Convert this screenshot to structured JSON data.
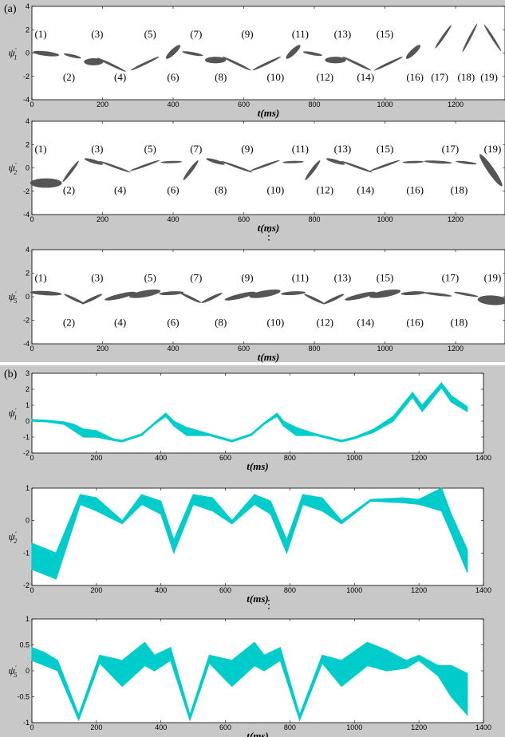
{
  "panels": [
    {
      "label": "(a)"
    },
    {
      "label": "(b)"
    }
  ],
  "ellipsis": "⋮",
  "chart_data": [
    {
      "type": "scatter",
      "panel": "a",
      "ylabel": "ψ'1",
      "xlabel": "t(ms)",
      "xlim": [
        0,
        1340
      ],
      "ylim": [
        -4,
        4
      ],
      "xticks": [
        0,
        200,
        400,
        600,
        800,
        1000,
        1200
      ],
      "yticks": [
        -4,
        -2,
        0,
        2,
        4
      ],
      "segment_labels": [
        {
          "text": "(1)",
          "x": 25,
          "y": 1.6
        },
        {
          "text": "(2)",
          "x": 105,
          "y": -2.1
        },
        {
          "text": "(3)",
          "x": 185,
          "y": 1.6
        },
        {
          "text": "(4)",
          "x": 250,
          "y": -2.1
        },
        {
          "text": "(5)",
          "x": 335,
          "y": 1.6
        },
        {
          "text": "(6)",
          "x": 400,
          "y": -2.1
        },
        {
          "text": "(7)",
          "x": 465,
          "y": 1.6
        },
        {
          "text": "(8)",
          "x": 535,
          "y": -2.1
        },
        {
          "text": "(9)",
          "x": 610,
          "y": 1.6
        },
        {
          "text": "(10)",
          "x": 690,
          "y": -2.1
        },
        {
          "text": "(11)",
          "x": 760,
          "y": 1.6
        },
        {
          "text": "(12)",
          "x": 830,
          "y": -2.1
        },
        {
          "text": "(13)",
          "x": 880,
          "y": 1.6
        },
        {
          "text": "(14)",
          "x": 945,
          "y": -2.1
        },
        {
          "text": "(15)",
          "x": 1000,
          "y": 1.6
        },
        {
          "text": "(16)",
          "x": 1085,
          "y": -2.1
        },
        {
          "text": "(17)",
          "x": 1155,
          "y": -2.1
        },
        {
          "text": "(18)",
          "x": 1230,
          "y": -2.1
        },
        {
          "text": "(19)",
          "x": 1295,
          "y": -2.1
        }
      ],
      "ellipses": [
        {
          "x": 40,
          "y": -0.05,
          "w": 75,
          "h": 0.28,
          "angle": -0.2
        },
        {
          "x": 115,
          "y": -0.25,
          "w": 50,
          "h": 0.14,
          "angle": -0.4
        },
        {
          "x": 175,
          "y": -0.75,
          "w": 55,
          "h": 0.5,
          "angle": 0
        },
        {
          "x": 225,
          "y": -1.0,
          "w": 90,
          "h": 0.1,
          "angle": -0.8
        },
        {
          "x": 320,
          "y": -0.9,
          "w": 90,
          "h": 0.1,
          "angle": 0.8
        },
        {
          "x": 400,
          "y": 0.1,
          "w": 55,
          "h": 0.35,
          "angle": 1.6
        },
        {
          "x": 455,
          "y": -0.05,
          "w": 60,
          "h": 0.15,
          "angle": -0.3
        },
        {
          "x": 520,
          "y": -0.6,
          "w": 60,
          "h": 0.45,
          "angle": 0
        },
        {
          "x": 580,
          "y": -0.9,
          "w": 90,
          "h": 0.1,
          "angle": -0.8
        },
        {
          "x": 665,
          "y": -0.9,
          "w": 90,
          "h": 0.1,
          "angle": 0.8
        },
        {
          "x": 740,
          "y": 0.1,
          "w": 55,
          "h": 0.35,
          "angle": 1.6
        },
        {
          "x": 795,
          "y": -0.05,
          "w": 55,
          "h": 0.15,
          "angle": -0.3
        },
        {
          "x": 860,
          "y": -0.6,
          "w": 60,
          "h": 0.45,
          "angle": 0
        },
        {
          "x": 920,
          "y": -0.9,
          "w": 90,
          "h": 0.1,
          "angle": -0.8
        },
        {
          "x": 1010,
          "y": -0.9,
          "w": 90,
          "h": 0.1,
          "angle": 0.8
        },
        {
          "x": 1080,
          "y": 0.1,
          "w": 55,
          "h": 0.35,
          "angle": 1.6
        },
        {
          "x": 1165,
          "y": 1.4,
          "w": 80,
          "h": 0.12,
          "angle": 2.4
        },
        {
          "x": 1240,
          "y": 1.3,
          "w": 90,
          "h": 0.1,
          "angle": 3.2
        },
        {
          "x": 1305,
          "y": 1.3,
          "w": 90,
          "h": 0.1,
          "angle": -2.6
        }
      ]
    },
    {
      "type": "scatter",
      "panel": "a",
      "ylabel": "ψ'2",
      "xlabel": "t(ms)",
      "xlim": [
        0,
        1340
      ],
      "ylim": [
        -4,
        4
      ],
      "xticks": [
        0,
        200,
        400,
        600,
        800,
        1000,
        1200
      ],
      "yticks": [
        -4,
        -2,
        0,
        2,
        4
      ],
      "segment_labels": [
        {
          "text": "(1)",
          "x": 25,
          "y": 1.6
        },
        {
          "text": "(2)",
          "x": 105,
          "y": -1.9
        },
        {
          "text": "(3)",
          "x": 185,
          "y": 1.6
        },
        {
          "text": "(4)",
          "x": 250,
          "y": -1.9
        },
        {
          "text": "(5)",
          "x": 335,
          "y": 1.6
        },
        {
          "text": "(6)",
          "x": 400,
          "y": -1.9
        },
        {
          "text": "(7)",
          "x": 465,
          "y": 1.6
        },
        {
          "text": "(8)",
          "x": 535,
          "y": -1.9
        },
        {
          "text": "(9)",
          "x": 610,
          "y": 1.6
        },
        {
          "text": "(10)",
          "x": 690,
          "y": -1.9
        },
        {
          "text": "(11)",
          "x": 760,
          "y": 1.6
        },
        {
          "text": "(12)",
          "x": 830,
          "y": -1.9
        },
        {
          "text": "(13)",
          "x": 880,
          "y": 1.6
        },
        {
          "text": "(14)",
          "x": 945,
          "y": -1.9
        },
        {
          "text": "(15)",
          "x": 1000,
          "y": 1.6
        },
        {
          "text": "(16)",
          "x": 1085,
          "y": -1.9
        },
        {
          "text": "(17)",
          "x": 1185,
          "y": 1.6
        },
        {
          "text": "(18)",
          "x": 1210,
          "y": -1.9
        },
        {
          "text": "(19)",
          "x": 1305,
          "y": 1.6
        }
      ],
      "ellipses": [
        {
          "x": 40,
          "y": -1.3,
          "w": 90,
          "h": 0.7,
          "angle": 0
        },
        {
          "x": 110,
          "y": -0.3,
          "w": 75,
          "h": 0.15,
          "angle": 2.2
        },
        {
          "x": 175,
          "y": 0.55,
          "w": 55,
          "h": 0.2,
          "angle": -0.5
        },
        {
          "x": 235,
          "y": 0.1,
          "w": 95,
          "h": 0.08,
          "angle": -0.6
        },
        {
          "x": 320,
          "y": 0.2,
          "w": 90,
          "h": 0.08,
          "angle": 0.6
        },
        {
          "x": 395,
          "y": 0.5,
          "w": 60,
          "h": 0.08,
          "angle": 0.05
        },
        {
          "x": 450,
          "y": -0.2,
          "w": 70,
          "h": 0.2,
          "angle": 2.2
        },
        {
          "x": 520,
          "y": 0.55,
          "w": 55,
          "h": 0.2,
          "angle": -0.5
        },
        {
          "x": 580,
          "y": 0.1,
          "w": 95,
          "h": 0.08,
          "angle": -0.6
        },
        {
          "x": 660,
          "y": 0.2,
          "w": 90,
          "h": 0.08,
          "angle": 0.6
        },
        {
          "x": 740,
          "y": 0.5,
          "w": 60,
          "h": 0.08,
          "angle": 0.05
        },
        {
          "x": 795,
          "y": -0.2,
          "w": 70,
          "h": 0.2,
          "angle": 2.2
        },
        {
          "x": 860,
          "y": 0.55,
          "w": 55,
          "h": 0.2,
          "angle": -0.5
        },
        {
          "x": 920,
          "y": 0.1,
          "w": 95,
          "h": 0.08,
          "angle": -0.6
        },
        {
          "x": 1000,
          "y": 0.2,
          "w": 90,
          "h": 0.08,
          "angle": 0.6
        },
        {
          "x": 1080,
          "y": 0.5,
          "w": 60,
          "h": 0.08,
          "angle": 0.05
        },
        {
          "x": 1150,
          "y": 0.5,
          "w": 80,
          "h": 0.12,
          "angle": -0.1
        },
        {
          "x": 1230,
          "y": 0.45,
          "w": 60,
          "h": 0.1,
          "angle": -0.2
        },
        {
          "x": 1300,
          "y": -0.2,
          "w": 110,
          "h": 0.45,
          "angle": -2.4
        }
      ]
    },
    {
      "type": "scatter",
      "panel": "a",
      "ylabel": "ψ'5",
      "xlabel": "t(ms)",
      "xlim": [
        0,
        1340
      ],
      "ylim": [
        -4,
        4
      ],
      "xticks": [
        0,
        200,
        400,
        600,
        800,
        1000,
        1200
      ],
      "yticks": [
        -4,
        -2,
        0,
        2,
        4
      ],
      "segment_labels": [
        {
          "text": "(1)",
          "x": 25,
          "y": 1.6
        },
        {
          "text": "(2)",
          "x": 105,
          "y": -2.2
        },
        {
          "text": "(3)",
          "x": 185,
          "y": 1.6
        },
        {
          "text": "(4)",
          "x": 250,
          "y": -2.2
        },
        {
          "text": "(5)",
          "x": 335,
          "y": 1.6
        },
        {
          "text": "(6)",
          "x": 400,
          "y": -2.2
        },
        {
          "text": "(7)",
          "x": 465,
          "y": 1.6
        },
        {
          "text": "(8)",
          "x": 535,
          "y": -2.2
        },
        {
          "text": "(9)",
          "x": 610,
          "y": 1.6
        },
        {
          "text": "(10)",
          "x": 690,
          "y": -2.2
        },
        {
          "text": "(11)",
          "x": 760,
          "y": 1.6
        },
        {
          "text": "(12)",
          "x": 830,
          "y": -2.2
        },
        {
          "text": "(13)",
          "x": 880,
          "y": 1.6
        },
        {
          "text": "(14)",
          "x": 945,
          "y": -2.2
        },
        {
          "text": "(15)",
          "x": 1000,
          "y": 1.6
        },
        {
          "text": "(16)",
          "x": 1085,
          "y": -2.2
        },
        {
          "text": "(17)",
          "x": 1185,
          "y": 1.6
        },
        {
          "text": "(18)",
          "x": 1210,
          "y": -2.2
        },
        {
          "text": "(19)",
          "x": 1305,
          "y": 1.6
        }
      ],
      "ellipses": [
        {
          "x": 40,
          "y": 0.3,
          "w": 90,
          "h": 0.25,
          "angle": -0.1
        },
        {
          "x": 120,
          "y": -0.2,
          "w": 65,
          "h": 0.12,
          "angle": -0.8
        },
        {
          "x": 170,
          "y": -0.2,
          "w": 65,
          "h": 0.15,
          "angle": 0.8
        },
        {
          "x": 250,
          "y": 0.05,
          "w": 90,
          "h": 0.3,
          "angle": 0.4
        },
        {
          "x": 320,
          "y": 0.25,
          "w": 90,
          "h": 0.45,
          "angle": 0.3
        },
        {
          "x": 395,
          "y": 0.3,
          "w": 70,
          "h": 0.2,
          "angle": 0.1
        },
        {
          "x": 450,
          "y": -0.1,
          "w": 65,
          "h": 0.12,
          "angle": -0.8
        },
        {
          "x": 510,
          "y": -0.1,
          "w": 65,
          "h": 0.15,
          "angle": 0.8
        },
        {
          "x": 590,
          "y": 0.05,
          "w": 90,
          "h": 0.3,
          "angle": 0.4
        },
        {
          "x": 660,
          "y": 0.25,
          "w": 90,
          "h": 0.45,
          "angle": 0.3
        },
        {
          "x": 740,
          "y": 0.3,
          "w": 70,
          "h": 0.2,
          "angle": 0.1
        },
        {
          "x": 800,
          "y": -0.2,
          "w": 65,
          "h": 0.12,
          "angle": -0.8
        },
        {
          "x": 855,
          "y": -0.2,
          "w": 65,
          "h": 0.15,
          "angle": 0.8
        },
        {
          "x": 930,
          "y": 0.05,
          "w": 90,
          "h": 0.3,
          "angle": 0.4
        },
        {
          "x": 1000,
          "y": 0.25,
          "w": 90,
          "h": 0.45,
          "angle": 0.3
        },
        {
          "x": 1080,
          "y": 0.3,
          "w": 70,
          "h": 0.2,
          "angle": 0.1
        },
        {
          "x": 1150,
          "y": 0.2,
          "w": 80,
          "h": 0.12,
          "angle": -0.2
        },
        {
          "x": 1230,
          "y": 0.2,
          "w": 70,
          "h": 0.1,
          "angle": -0.3
        },
        {
          "x": 1305,
          "y": -0.3,
          "w": 85,
          "h": 0.7,
          "angle": -0.1
        }
      ]
    },
    {
      "type": "area",
      "panel": "b",
      "ylabel": "ψ'1",
      "xlabel": "t(ms)",
      "xlim": [
        0,
        1400
      ],
      "ylim": [
        -2,
        3
      ],
      "xticks": [
        0,
        200,
        400,
        600,
        800,
        1000,
        1200,
        1400
      ],
      "yticks": [
        -2,
        -1,
        0,
        1,
        2,
        3
      ],
      "x": [
        0,
        50,
        100,
        130,
        160,
        200,
        250,
        280,
        340,
        380,
        415,
        440,
        480,
        550,
        620,
        680,
        720,
        760,
        780,
        820,
        880,
        960,
        1000,
        1060,
        1120,
        1180,
        1210,
        1270,
        1300,
        1350
      ],
      "upper": [
        0.1,
        0.05,
        -0.05,
        -0.2,
        -0.5,
        -0.6,
        -1.1,
        -1.2,
        -0.8,
        -0.1,
        0.5,
        0.0,
        -0.4,
        -0.8,
        -1.2,
        -0.8,
        -0.1,
        0.5,
        0.0,
        -0.4,
        -0.8,
        -1.2,
        -1.0,
        -0.5,
        0.3,
        1.8,
        1.0,
        2.4,
        1.6,
        0.9
      ],
      "lower": [
        0.0,
        -0.05,
        -0.2,
        -0.6,
        -1.0,
        -1.0,
        -1.2,
        -1.3,
        -0.9,
        -0.2,
        0.3,
        -0.3,
        -0.9,
        -0.9,
        -1.3,
        -0.9,
        -0.2,
        0.3,
        -0.3,
        -0.9,
        -0.9,
        -1.3,
        -1.1,
        -0.7,
        0.0,
        1.5,
        0.6,
        2.1,
        1.2,
        0.6
      ]
    },
    {
      "type": "area",
      "panel": "b",
      "ylabel": "ψ'2",
      "xlabel": "t(ms)",
      "xlim": [
        0,
        1400
      ],
      "ylim": [
        -2,
        1
      ],
      "xticks": [
        0,
        200,
        400,
        600,
        800,
        1000,
        1200,
        1400
      ],
      "yticks": [
        -2,
        -1,
        0,
        1
      ],
      "x": [
        0,
        75,
        150,
        200,
        280,
        340,
        400,
        440,
        500,
        560,
        620,
        690,
        740,
        790,
        840,
        900,
        960,
        1050,
        1150,
        1200,
        1270,
        1300,
        1350
      ],
      "upper": [
        -0.7,
        -1.0,
        0.8,
        0.7,
        0.0,
        0.8,
        0.6,
        -0.6,
        0.8,
        0.7,
        0.0,
        0.8,
        0.6,
        -0.6,
        0.8,
        0.7,
        0.0,
        0.65,
        0.7,
        0.65,
        1.0,
        0.2,
        -0.9
      ],
      "lower": [
        -1.5,
        -1.8,
        0.5,
        0.3,
        -0.1,
        0.5,
        0.2,
        -1.0,
        0.5,
        0.3,
        -0.1,
        0.5,
        0.2,
        -1.0,
        0.5,
        0.3,
        -0.1,
        0.6,
        0.55,
        0.5,
        0.3,
        -0.4,
        -1.6
      ]
    },
    {
      "type": "area",
      "panel": "b",
      "ylabel": "ψ'5",
      "xlabel": "t(ms)",
      "xlim": [
        0,
        1400
      ],
      "ylim": [
        -1,
        1
      ],
      "xticks": [
        0,
        200,
        400,
        600,
        800,
        1000,
        1200,
        1400
      ],
      "yticks": [
        -1,
        -0.5,
        0,
        0.5,
        1
      ],
      "x": [
        0,
        40,
        80,
        145,
        210,
        280,
        350,
        380,
        430,
        490,
        550,
        620,
        690,
        720,
        770,
        830,
        900,
        960,
        1040,
        1100,
        1160,
        1200,
        1260,
        1300,
        1350
      ],
      "upper": [
        0.45,
        0.35,
        0.2,
        -0.85,
        0.3,
        0.2,
        0.55,
        0.3,
        0.45,
        -0.85,
        0.3,
        0.2,
        0.55,
        0.3,
        0.45,
        -0.85,
        0.3,
        0.2,
        0.55,
        0.4,
        0.2,
        0.3,
        0.1,
        0.1,
        -0.05
      ],
      "lower": [
        0.2,
        0.1,
        0.0,
        -0.95,
        0.15,
        -0.3,
        0.1,
        0.0,
        0.2,
        -0.95,
        0.15,
        -0.3,
        0.1,
        0.0,
        0.2,
        -0.95,
        0.15,
        -0.3,
        0.1,
        0.0,
        0.05,
        0.2,
        -0.1,
        -0.5,
        -0.85
      ]
    }
  ]
}
